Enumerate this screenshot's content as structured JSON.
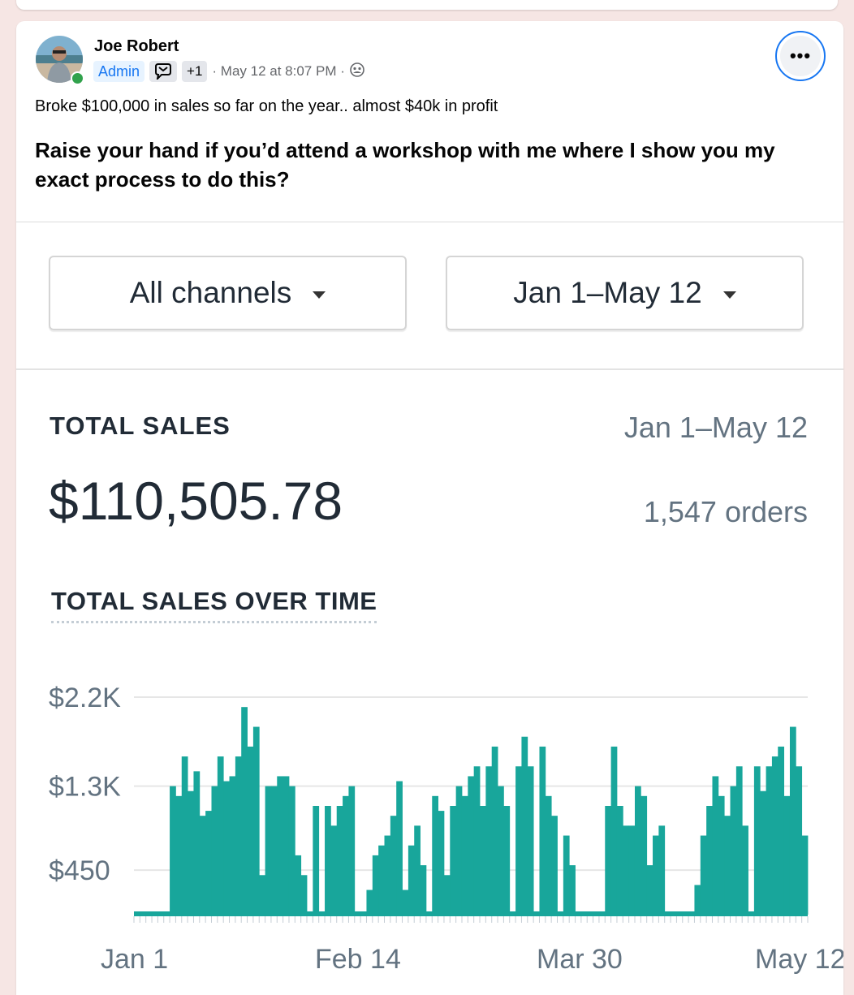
{
  "post": {
    "author": "Joe Robert",
    "badge_admin": "Admin",
    "badge_extra": "+1",
    "timestamp": "· May 12 at 8:07 PM ·",
    "text_line1": "Broke $100,000 in sales so far on the year.. almost $40k in profit",
    "text_line2": "Raise your hand if you’d attend a workshop with me where I show you my exact process to do this?",
    "icons": [
      "more-options-icon",
      "admin-badge-icon",
      "group-audience-icon"
    ]
  },
  "report": {
    "channel_filter": "All channels",
    "date_filter": "Jan 1–May 12",
    "total_label": "TOTAL SALES",
    "total_range": "Jan 1–May 12",
    "total_value": "$110,505.78",
    "orders": "1,547 orders",
    "chart_title": "TOTAL SALES OVER TIME",
    "accent_color": "#18a69b"
  },
  "chart_data": {
    "type": "bar",
    "title": "TOTAL SALES OVER TIME",
    "y_ticks": [
      "$2.2K",
      "$1.3K",
      "$450"
    ],
    "y_tick_values": [
      2200,
      1300,
      450
    ],
    "x_ticks": [
      "Jan 1",
      "Feb 14",
      "Mar 30",
      "May 12"
    ],
    "grid": true,
    "color": "#18a69b",
    "values": [
      0,
      0,
      0,
      0,
      0,
      0,
      1300,
      1200,
      1600,
      1250,
      1450,
      1000,
      1050,
      1300,
      1600,
      1350,
      1400,
      1600,
      2100,
      1700,
      1900,
      400,
      1300,
      1300,
      1400,
      1400,
      1300,
      600,
      400,
      0,
      1100,
      0,
      1100,
      900,
      1100,
      1200,
      1300,
      0,
      0,
      250,
      600,
      700,
      800,
      1000,
      1350,
      250,
      700,
      900,
      500,
      0,
      1200,
      1050,
      400,
      1100,
      1300,
      1200,
      1400,
      1500,
      1100,
      1500,
      1700,
      1300,
      1100,
      0,
      1500,
      1800,
      1500,
      0,
      1700,
      1200,
      1000,
      0,
      800,
      500,
      0,
      0,
      0,
      0,
      0,
      1100,
      1700,
      1100,
      900,
      900,
      1300,
      1200,
      500,
      800,
      900,
      0,
      0,
      0,
      0,
      0,
      300,
      800,
      1100,
      1400,
      1200,
      1000,
      1300,
      1500,
      900,
      0,
      1500,
      1250,
      1500,
      1600,
      1700,
      1200,
      1900,
      1500,
      800
    ],
    "ylim": [
      0,
      2200
    ]
  }
}
